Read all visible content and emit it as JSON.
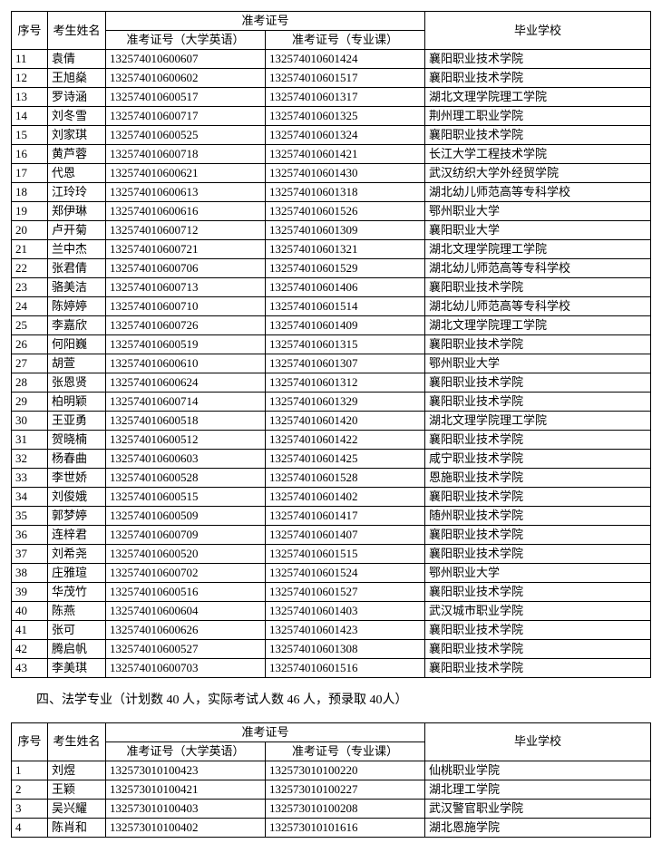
{
  "headers": {
    "seq": "序号",
    "name": "考生姓名",
    "exam_group": "准考证号",
    "exam1": "准考证号（大学英语）",
    "exam2": "准考证号（专业课）",
    "school": "毕业学校"
  },
  "table1_rows": [
    {
      "seq": "11",
      "name": "袁倩",
      "e1": "132574010600607",
      "e2": "132574010601424",
      "school": "襄阳职业技术学院"
    },
    {
      "seq": "12",
      "name": "王旭燊",
      "e1": "132574010600602",
      "e2": "132574010601517",
      "school": "襄阳职业技术学院"
    },
    {
      "seq": "13",
      "name": "罗诗涵",
      "e1": "132574010600517",
      "e2": "132574010601317",
      "school": "湖北文理学院理工学院"
    },
    {
      "seq": "14",
      "name": "刘冬雪",
      "e1": "132574010600717",
      "e2": "132574010601325",
      "school": "荆州理工职业学院"
    },
    {
      "seq": "15",
      "name": "刘家琪",
      "e1": "132574010600525",
      "e2": "132574010601324",
      "school": "襄阳职业技术学院"
    },
    {
      "seq": "16",
      "name": "黄芦蓉",
      "e1": "132574010600718",
      "e2": "132574010601421",
      "school": "长江大学工程技术学院"
    },
    {
      "seq": "17",
      "name": "代恩",
      "e1": "132574010600621",
      "e2": "132574010601430",
      "school": "武汉纺织大学外经贸学院"
    },
    {
      "seq": "18",
      "name": "江玲玲",
      "e1": "132574010600613",
      "e2": "132574010601318",
      "school": "湖北幼儿师范高等专科学校"
    },
    {
      "seq": "19",
      "name": "郑伊琳",
      "e1": "132574010600616",
      "e2": "132574010601526",
      "school": "鄂州职业大学"
    },
    {
      "seq": "20",
      "name": "卢开菊",
      "e1": "132574010600712",
      "e2": "132574010601309",
      "school": "襄阳职业大学"
    },
    {
      "seq": "21",
      "name": "兰中杰",
      "e1": "132574010600721",
      "e2": "132574010601321",
      "school": "湖北文理学院理工学院"
    },
    {
      "seq": "22",
      "name": "张君倩",
      "e1": "132574010600706",
      "e2": "132574010601529",
      "school": "湖北幼儿师范高等专科学校"
    },
    {
      "seq": "23",
      "name": "骆美洁",
      "e1": "132574010600713",
      "e2": "132574010601406",
      "school": "襄阳职业技术学院"
    },
    {
      "seq": "24",
      "name": "陈婷婷",
      "e1": "132574010600710",
      "e2": "132574010601514",
      "school": "湖北幼儿师范高等专科学校"
    },
    {
      "seq": "25",
      "name": "李嘉欣",
      "e1": "132574010600726",
      "e2": "132574010601409",
      "school": "湖北文理学院理工学院"
    },
    {
      "seq": "26",
      "name": "何阳巍",
      "e1": "132574010600519",
      "e2": "132574010601315",
      "school": "襄阳职业技术学院"
    },
    {
      "seq": "27",
      "name": "胡萱",
      "e1": "132574010600610",
      "e2": "132574010601307",
      "school": "鄂州职业大学"
    },
    {
      "seq": "28",
      "name": "张恩贤",
      "e1": "132574010600624",
      "e2": "132574010601312",
      "school": "襄阳职业技术学院"
    },
    {
      "seq": "29",
      "name": "柏明颖",
      "e1": "132574010600714",
      "e2": "132574010601329",
      "school": "襄阳职业技术学院"
    },
    {
      "seq": "30",
      "name": "王亚勇",
      "e1": "132574010600518",
      "e2": "132574010601420",
      "school": "湖北文理学院理工学院"
    },
    {
      "seq": "31",
      "name": "贺晓楠",
      "e1": "132574010600512",
      "e2": "132574010601422",
      "school": "襄阳职业技术学院"
    },
    {
      "seq": "32",
      "name": "杨春曲",
      "e1": "132574010600603",
      "e2": "132574010601425",
      "school": "咸宁职业技术学院"
    },
    {
      "seq": "33",
      "name": "李世娇",
      "e1": "132574010600528",
      "e2": "132574010601528",
      "school": "恩施职业技术学院"
    },
    {
      "seq": "34",
      "name": "刘俊娥",
      "e1": "132574010600515",
      "e2": "132574010601402",
      "school": "襄阳职业技术学院"
    },
    {
      "seq": "35",
      "name": "郭梦婷",
      "e1": "132574010600509",
      "e2": "132574010601417",
      "school": "随州职业技术学院"
    },
    {
      "seq": "36",
      "name": "连梓君",
      "e1": "132574010600709",
      "e2": "132574010601407",
      "school": "襄阳职业技术学院"
    },
    {
      "seq": "37",
      "name": "刘希尧",
      "e1": "132574010600520",
      "e2": "132574010601515",
      "school": "襄阳职业技术学院"
    },
    {
      "seq": "38",
      "name": "庄雅瑄",
      "e1": "132574010600702",
      "e2": "132574010601524",
      "school": "鄂州职业大学"
    },
    {
      "seq": "39",
      "name": "华茂竹",
      "e1": "132574010600516",
      "e2": "132574010601527",
      "school": "襄阳职业技术学院"
    },
    {
      "seq": "40",
      "name": "陈燕",
      "e1": "132574010600604",
      "e2": "132574010601403",
      "school": "武汉城市职业学院"
    },
    {
      "seq": "41",
      "name": "张可",
      "e1": "132574010600626",
      "e2": "132574010601423",
      "school": "襄阳职业技术学院"
    },
    {
      "seq": "42",
      "name": "腾启帆",
      "e1": "132574010600527",
      "e2": "132574010601308",
      "school": "襄阳职业技术学院"
    },
    {
      "seq": "43",
      "name": "李美琪",
      "e1": "132574010600703",
      "e2": "132574010601516",
      "school": "襄阳职业技术学院"
    }
  ],
  "caption": "四、法学专业（计划数 40 人，实际考试人数 46 人，预录取 40人）",
  "table2_rows": [
    {
      "seq": "1",
      "name": "刘煜",
      "e1": "132573010100423",
      "e2": "132573010100220",
      "school": "仙桃职业学院"
    },
    {
      "seq": "2",
      "name": "王颖",
      "e1": "132573010100421",
      "e2": "132573010100227",
      "school": "湖北理工学院"
    },
    {
      "seq": "3",
      "name": "吴兴耀",
      "e1": "132573010100403",
      "e2": "132573010100208",
      "school": "武汉警官职业学院"
    },
    {
      "seq": "4",
      "name": "陈肖和",
      "e1": "132573010100402",
      "e2": "132573010101616",
      "school": "湖北恩施学院"
    }
  ]
}
